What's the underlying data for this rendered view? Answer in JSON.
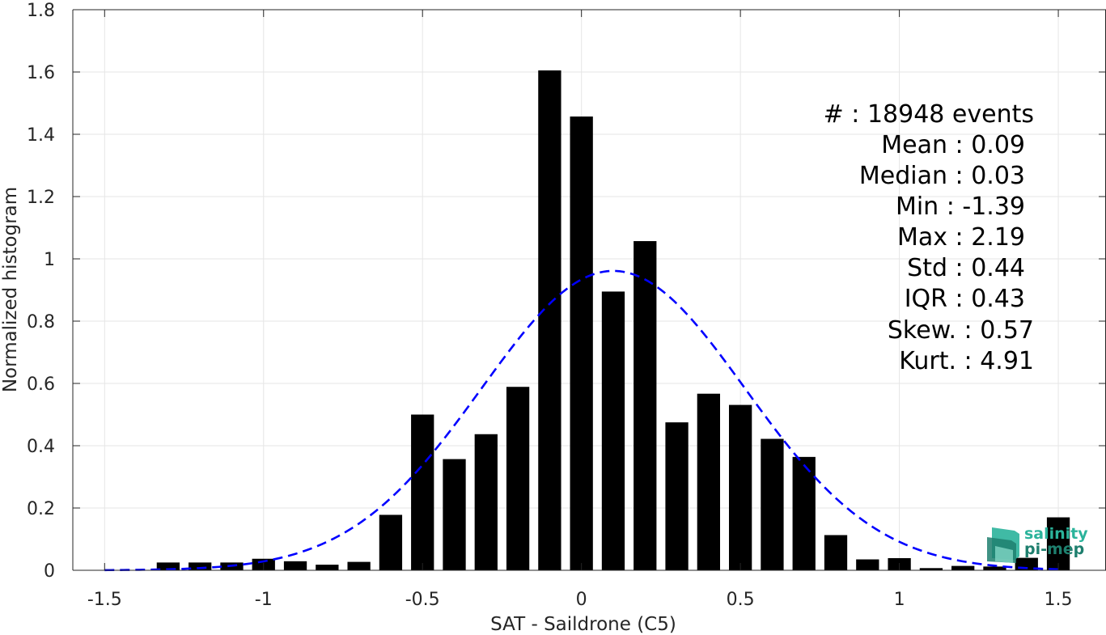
{
  "chart_data": {
    "type": "bar",
    "xlabel": "SAT - Saildrone (C5)",
    "ylabel": "Normalized histogram",
    "xlim": [
      -1.6,
      1.65
    ],
    "ylim": [
      0,
      1.8
    ],
    "xticks": [
      -1.5,
      -1,
      -0.5,
      0,
      0.5,
      1,
      1.5
    ],
    "xtick_labels": [
      "-1.5",
      "-1",
      "-0.5",
      "0",
      "0.5",
      "1",
      "1.5"
    ],
    "yticks": [
      0,
      0.2,
      0.4,
      0.6,
      0.8,
      1,
      1.2,
      1.4,
      1.6,
      1.8
    ],
    "ytick_labels": [
      "0",
      "0.2",
      "0.4",
      "0.6",
      "0.8",
      "1",
      "1.2",
      "1.4",
      "1.6",
      "1.8"
    ],
    "grid": true,
    "bin_width": 0.1,
    "bar_color": "#000000",
    "fit_color": "#0000ff",
    "bins": [
      {
        "x": -1.3,
        "y": 0.025
      },
      {
        "x": -1.2,
        "y": 0.025
      },
      {
        "x": -1.1,
        "y": 0.025
      },
      {
        "x": -1.0,
        "y": 0.037
      },
      {
        "x": -0.9,
        "y": 0.029
      },
      {
        "x": -0.8,
        "y": 0.018
      },
      {
        "x": -0.7,
        "y": 0.027
      },
      {
        "x": -0.6,
        "y": 0.178
      },
      {
        "x": -0.5,
        "y": 0.5
      },
      {
        "x": -0.4,
        "y": 0.357
      },
      {
        "x": -0.3,
        "y": 0.437
      },
      {
        "x": -0.2,
        "y": 0.589
      },
      {
        "x": -0.1,
        "y": 1.605
      },
      {
        "x": 0.0,
        "y": 1.457
      },
      {
        "x": 0.1,
        "y": 0.895
      },
      {
        "x": 0.2,
        "y": 1.057
      },
      {
        "x": 0.3,
        "y": 0.475
      },
      {
        "x": 0.4,
        "y": 0.567
      },
      {
        "x": 0.5,
        "y": 0.531
      },
      {
        "x": 0.6,
        "y": 0.422
      },
      {
        "x": 0.7,
        "y": 0.364
      },
      {
        "x": 0.8,
        "y": 0.113
      },
      {
        "x": 0.9,
        "y": 0.035
      },
      {
        "x": 1.0,
        "y": 0.039
      },
      {
        "x": 1.1,
        "y": 0.007
      },
      {
        "x": 1.2,
        "y": 0.014
      },
      {
        "x": 1.3,
        "y": 0.012
      },
      {
        "x": 1.4,
        "y": 0.04
      },
      {
        "x": 1.5,
        "y": 0.17
      }
    ],
    "fit": {
      "type": "normal",
      "mean": 0.1,
      "std": 0.415,
      "x_range": [
        -1.5,
        1.5
      ]
    }
  },
  "stats": [
    {
      "text": "#  : 18948 events"
    },
    {
      "text": "Mean : 0.09"
    },
    {
      "text": "Median : 0.03"
    },
    {
      "text": "Min : -1.39"
    },
    {
      "text": "Max : 2.19"
    },
    {
      "text": "Std : 0.44"
    },
    {
      "text": "IQR : 0.43"
    },
    {
      "text": "Skew. : 0.57"
    },
    {
      "text": "Kurt. : 4.91"
    }
  ],
  "logo": {
    "line1": "salinity",
    "line2": "pi-mep",
    "color": "#2bb39b",
    "dark_color": "#1e7f6e"
  }
}
